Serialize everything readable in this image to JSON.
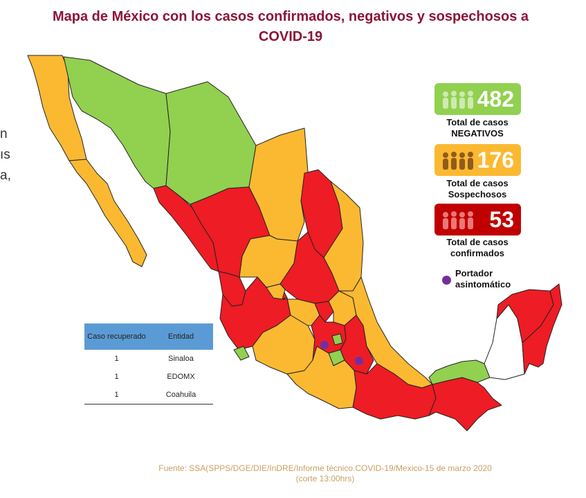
{
  "title_line1": "Mapa de México con los casos confirmados, negativos y sospechosos a",
  "title_line2": "COVID-19",
  "cut_text": [
    "n",
    "ıs",
    "a,"
  ],
  "stats": [
    {
      "id": "negativos",
      "value": "482",
      "label1": "Total de casos",
      "label2": "NEGATIVOS",
      "color": "#92d050",
      "icon": "people-group-icon"
    },
    {
      "id": "sospechosos",
      "value": "176",
      "label1": "Total de casos",
      "label2": "Sospechosos",
      "color": "#fbb932",
      "icon": "people-group-icon"
    },
    {
      "id": "confirmados",
      "value": "53",
      "label1": "Total de casos",
      "label2": "confirmados",
      "color": "#c00000",
      "icon": "people-group-icon"
    }
  ],
  "legend": {
    "line1": "Portador",
    "line2": "asintomático",
    "color": "#7030a0"
  },
  "recovered_table": {
    "headers": [
      "Caso recuperado",
      "Entidad"
    ],
    "rows": [
      [
        "1",
        "Sinaloa"
      ],
      [
        "1",
        "EDOMX"
      ],
      [
        "1",
        "Coahuila"
      ]
    ]
  },
  "colors": {
    "confirmado": "#ee1c24",
    "sospechoso": "#fbb932",
    "negativo": "#92d050",
    "sin_caso": "#ffffff",
    "title": "#8b1538"
  },
  "source_line1": "Fuente: SSA(SPPS/DGE/DIE/InDRE/Informe técnico.COVID-19/Mexico-15 de marzo 2020",
  "source_line2": "(corte 13:00hrs)"
}
